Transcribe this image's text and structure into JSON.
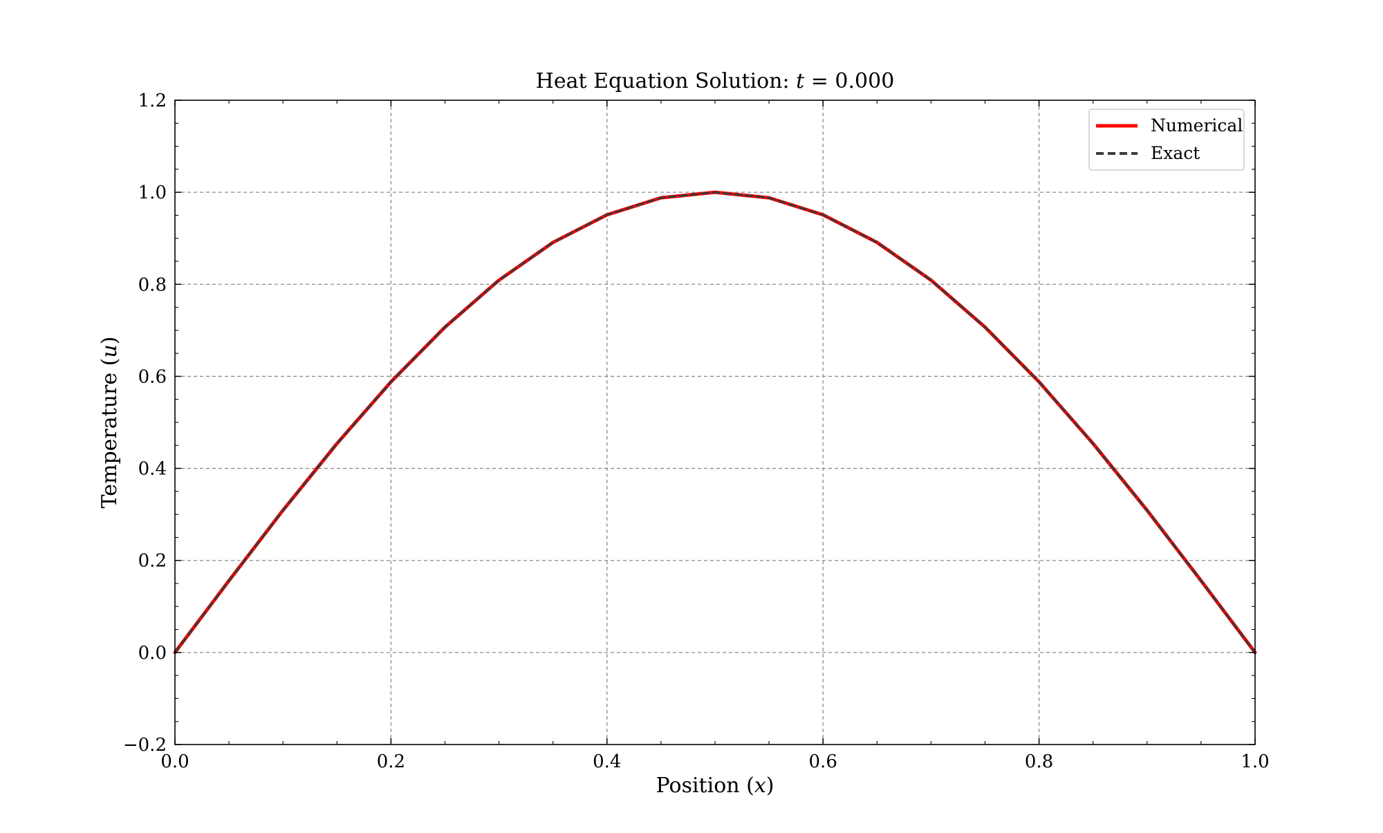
{
  "chart_data": {
    "type": "line",
    "title_prefix": "Heat Equation Solution: ",
    "title_var": "t",
    "title_suffix": " = 0.000",
    "xlabel_prefix": "Position (",
    "xlabel_var": "x",
    "xlabel_suffix": ")",
    "ylabel_prefix": "Temperature (",
    "ylabel_var": "u",
    "ylabel_suffix": ")",
    "xlim": [
      0.0,
      1.0
    ],
    "ylim": [
      -0.2,
      1.2
    ],
    "x_ticks": [
      0.0,
      0.2,
      0.4,
      0.6,
      0.8,
      1.0
    ],
    "x_tick_labels": [
      "0.0",
      "0.2",
      "0.4",
      "0.6",
      "0.8",
      "1.0"
    ],
    "y_ticks": [
      -0.2,
      0.0,
      0.2,
      0.4,
      0.6,
      0.8,
      1.0,
      1.2
    ],
    "y_tick_labels": [
      "−0.2",
      "0.0",
      "0.2",
      "0.4",
      "0.6",
      "0.8",
      "1.0",
      "1.2"
    ],
    "grid": true,
    "legend_position": "top-right",
    "x": [
      0.0,
      0.05,
      0.1,
      0.15,
      0.2,
      0.25,
      0.3,
      0.35,
      0.4,
      0.45,
      0.5,
      0.55,
      0.6,
      0.65,
      0.7,
      0.75,
      0.8,
      0.85,
      0.9,
      0.95,
      1.0
    ],
    "series": [
      {
        "name": "Numerical",
        "color": "#ff0000",
        "style": "solid",
        "values": [
          0.0,
          0.156,
          0.309,
          0.454,
          0.588,
          0.707,
          0.809,
          0.891,
          0.951,
          0.988,
          1.0,
          0.988,
          0.951,
          0.891,
          0.809,
          0.707,
          0.588,
          0.454,
          0.309,
          0.156,
          0.0
        ]
      },
      {
        "name": "Exact",
        "color": "#3a3a3a",
        "style": "dashed",
        "values": [
          0.0,
          0.156,
          0.309,
          0.454,
          0.588,
          0.707,
          0.809,
          0.891,
          0.951,
          0.988,
          1.0,
          0.988,
          0.951,
          0.891,
          0.809,
          0.707,
          0.588,
          0.454,
          0.309,
          0.156,
          0.0
        ]
      }
    ]
  }
}
